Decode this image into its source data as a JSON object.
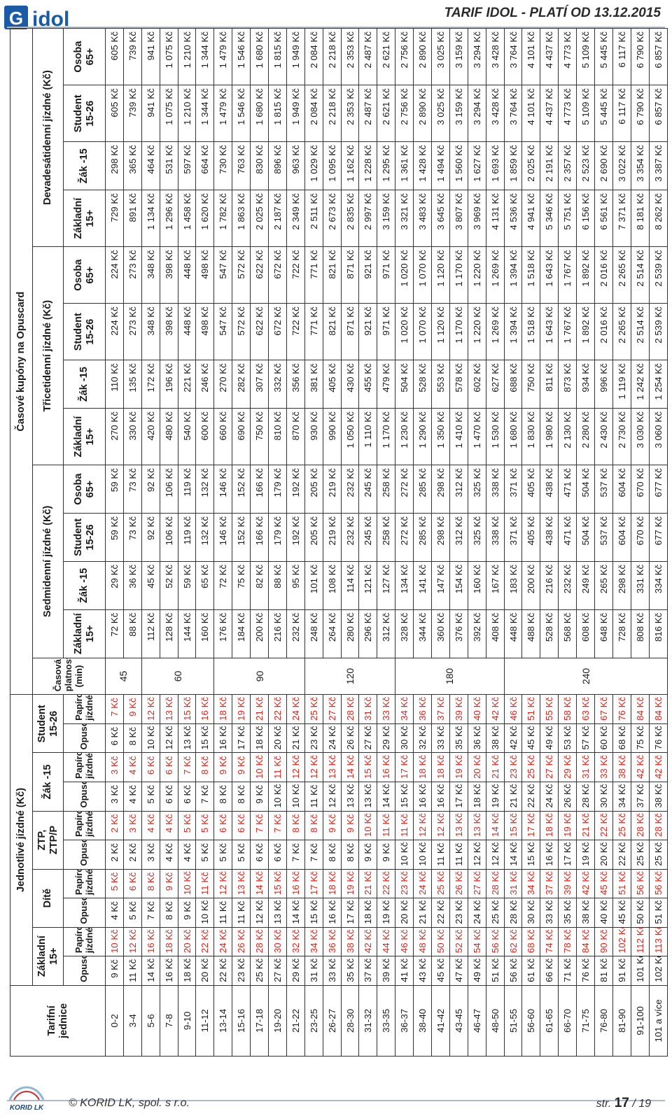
{
  "header": {
    "logo_text": "idol",
    "title": "TARIF IDOL - PLATÍ OD 13.12.2015"
  },
  "table": {
    "h_zones": "Tarifní jednice",
    "h_single": "Jednotlivé jízdné (Kč)",
    "h_coupons": "Časové kupóny na Opuscard",
    "h_validity": "Časová platnost (min)",
    "h_7": "Sedmidenní jízdné (Kč)",
    "h_30": "Třicetidenní jízdné (Kč)",
    "h_90": "Devadesátidenní jízdné (Kč)",
    "single_cats": [
      "Základní 15+",
      "Dítě",
      "ZTP, ZTP/P",
      "Žák -15",
      "Student 15-26"
    ],
    "pay_opus": "Opuscard",
    "pay_paper": "Papírové jízdné",
    "coupon_cats": [
      "Základní 15+",
      "Žák -15",
      "Student 15-26",
      "Osoba 65+"
    ],
    "validity_groups": [
      {
        "rows": 2,
        "label": "45"
      },
      {
        "rows": 4,
        "label": "60"
      },
      {
        "rows": 5,
        "label": "90"
      },
      {
        "rows": 5,
        "label": "120"
      },
      {
        "rows": 6,
        "label": "180"
      },
      {
        "rows": 9,
        "label": "240"
      }
    ],
    "rows": [
      {
        "z": "0-2",
        "s": [
          "9 Kč",
          "10 Kč",
          "4 Kč",
          "5 Kč",
          "2 Kč",
          "2 Kč",
          "3 Kč",
          "3 Kč",
          "6 Kč",
          "7 Kč"
        ],
        "c": [
          "72 Kč",
          "29 Kč",
          "59 Kč",
          "59 Kč",
          "270 Kč",
          "110 Kč",
          "224 Kč",
          "224 Kč",
          "729 Kč",
          "298 Kč",
          "605 Kč",
          "605 Kč"
        ]
      },
      {
        "z": "3-4",
        "s": [
          "11 Kč",
          "12 Kč",
          "5 Kč",
          "6 Kč",
          "2 Kč",
          "3 Kč",
          "4 Kč",
          "4 Kč",
          "8 Kč",
          "9 Kč"
        ],
        "c": [
          "88 Kč",
          "36 Kč",
          "73 Kč",
          "73 Kč",
          "330 Kč",
          "135 Kč",
          "273 Kč",
          "273 Kč",
          "891 Kč",
          "365 Kč",
          "739 Kč",
          "739 Kč"
        ]
      },
      {
        "z": "5-6",
        "s": [
          "14 Kč",
          "16 Kč",
          "7 Kč",
          "8 Kč",
          "3 Kč",
          "4 Kč",
          "5 Kč",
          "6 Kč",
          "10 Kč",
          "12 Kč"
        ],
        "c": [
          "112 Kč",
          "45 Kč",
          "92 Kč",
          "92 Kč",
          "420 Kč",
          "172 Kč",
          "348 Kč",
          "348 Kč",
          "1 134 Kč",
          "464 Kč",
          "941 Kč",
          "941 Kč"
        ]
      },
      {
        "z": "7-8",
        "s": [
          "16 Kč",
          "18 Kč",
          "8 Kč",
          "9 Kč",
          "4 Kč",
          "4 Kč",
          "6 Kč",
          "6 Kč",
          "12 Kč",
          "13 Kč"
        ],
        "c": [
          "128 Kč",
          "52 Kč",
          "106 Kč",
          "106 Kč",
          "480 Kč",
          "196 Kč",
          "398 Kč",
          "398 Kč",
          "1 296 Kč",
          "531 Kč",
          "1 075 Kč",
          "1 075 Kč"
        ]
      },
      {
        "z": "9-10",
        "s": [
          "18 Kč",
          "20 Kč",
          "9 Kč",
          "10 Kč",
          "4 Kč",
          "5 Kč",
          "6 Kč",
          "7 Kč",
          "13 Kč",
          "15 Kč"
        ],
        "c": [
          "144 Kč",
          "59 Kč",
          "119 Kč",
          "119 Kč",
          "540 Kč",
          "221 Kč",
          "448 Kč",
          "448 Kč",
          "1 458 Kč",
          "597 Kč",
          "1 210 Kč",
          "1 210 Kč"
        ]
      },
      {
        "z": "11-12",
        "s": [
          "20 Kč",
          "22 Kč",
          "10 Kč",
          "11 Kč",
          "5 Kč",
          "5 Kč",
          "7 Kč",
          "8 Kč",
          "15 Kč",
          "16 Kč"
        ],
        "c": [
          "160 Kč",
          "65 Kč",
          "132 Kč",
          "132 Kč",
          "600 Kč",
          "246 Kč",
          "498 Kč",
          "498 Kč",
          "1 620 Kč",
          "664 Kč",
          "1 344 Kč",
          "1 344 Kč"
        ]
      },
      {
        "z": "13-14",
        "s": [
          "22 Kč",
          "24 Kč",
          "11 Kč",
          "12 Kč",
          "5 Kč",
          "6 Kč",
          "8 Kč",
          "9 Kč",
          "16 Kč",
          "18 Kč"
        ],
        "c": [
          "176 Kč",
          "72 Kč",
          "146 Kč",
          "146 Kč",
          "660 Kč",
          "270 Kč",
          "547 Kč",
          "547 Kč",
          "1 782 Kč",
          "730 Kč",
          "1 479 Kč",
          "1 479 Kč"
        ]
      },
      {
        "z": "15-16",
        "s": [
          "23 Kč",
          "26 Kč",
          "11 Kč",
          "13 Kč",
          "5 Kč",
          "6 Kč",
          "8 Kč",
          "9 Kč",
          "17 Kč",
          "19 Kč"
        ],
        "c": [
          "184 Kč",
          "75 Kč",
          "152 Kč",
          "152 Kč",
          "690 Kč",
          "282 Kč",
          "572 Kč",
          "572 Kč",
          "1 863 Kč",
          "763 Kč",
          "1 546 Kč",
          "1 546 Kč"
        ]
      },
      {
        "z": "17-18",
        "s": [
          "25 Kč",
          "28 Kč",
          "12 Kč",
          "14 Kč",
          "6 Kč",
          "7 Kč",
          "9 Kč",
          "10 Kč",
          "18 Kč",
          "21 Kč"
        ],
        "c": [
          "200 Kč",
          "82 Kč",
          "166 Kč",
          "166 Kč",
          "750 Kč",
          "307 Kč",
          "622 Kč",
          "622 Kč",
          "2 025 Kč",
          "830 Kč",
          "1 680 Kč",
          "1 680 Kč"
        ]
      },
      {
        "z": "19-20",
        "s": [
          "27 Kč",
          "30 Kč",
          "13 Kč",
          "15 Kč",
          "6 Kč",
          "7 Kč",
          "10 Kč",
          "11 Kč",
          "20 Kč",
          "22 Kč"
        ],
        "c": [
          "216 Kč",
          "88 Kč",
          "179 Kč",
          "179 Kč",
          "810 Kč",
          "332 Kč",
          "672 Kč",
          "672 Kč",
          "2 187 Kč",
          "896 Kč",
          "1 815 Kč",
          "1 815 Kč"
        ]
      },
      {
        "z": "21-22",
        "s": [
          "29 Kč",
          "32 Kč",
          "14 Kč",
          "16 Kč",
          "7 Kč",
          "8 Kč",
          "10 Kč",
          "12 Kč",
          "21 Kč",
          "24 Kč"
        ],
        "c": [
          "232 Kč",
          "95 Kč",
          "192 Kč",
          "192 Kč",
          "870 Kč",
          "356 Kč",
          "722 Kč",
          "722 Kč",
          "2 349 Kč",
          "963 Kč",
          "1 949 Kč",
          "1 949 Kč"
        ]
      },
      {
        "z": "23-25",
        "s": [
          "31 Kč",
          "34 Kč",
          "15 Kč",
          "17 Kč",
          "7 Kč",
          "8 Kč",
          "11 Kč",
          "12 Kč",
          "23 Kč",
          "25 Kč"
        ],
        "c": [
          "248 Kč",
          "101 Kč",
          "205 Kč",
          "205 Kč",
          "930 Kč",
          "381 Kč",
          "771 Kč",
          "771 Kč",
          "2 511 Kč",
          "1 029 Kč",
          "2 084 Kč",
          "2 084 Kč"
        ]
      },
      {
        "z": "26-27",
        "s": [
          "33 Kč",
          "36 Kč",
          "16 Kč",
          "18 Kč",
          "8 Kč",
          "9 Kč",
          "12 Kč",
          "13 Kč",
          "24 Kč",
          "27 Kč"
        ],
        "c": [
          "264 Kč",
          "108 Kč",
          "219 Kč",
          "219 Kč",
          "990 Kč",
          "405 Kč",
          "821 Kč",
          "821 Kč",
          "2 673 Kč",
          "1 095 Kč",
          "2 218 Kč",
          "2 218 Kč"
        ]
      },
      {
        "z": "28-30",
        "s": [
          "35 Kč",
          "38 Kč",
          "17 Kč",
          "19 Kč",
          "8 Kč",
          "9 Kč",
          "13 Kč",
          "14 Kč",
          "26 Kč",
          "28 Kč"
        ],
        "c": [
          "280 Kč",
          "114 Kč",
          "232 Kč",
          "232 Kč",
          "1 050 Kč",
          "430 Kč",
          "871 Kč",
          "871 Kč",
          "2 835 Kč",
          "1 162 Kč",
          "2 353 Kč",
          "2 353 Kč"
        ]
      },
      {
        "z": "31-32",
        "s": [
          "37 Kč",
          "42 Kč",
          "18 Kč",
          "21 Kč",
          "9 Kč",
          "10 Kč",
          "13 Kč",
          "15 Kč",
          "27 Kč",
          "31 Kč"
        ],
        "c": [
          "296 Kč",
          "121 Kč",
          "245 Kč",
          "245 Kč",
          "1 110 Kč",
          "455 Kč",
          "921 Kč",
          "921 Kč",
          "2 997 Kč",
          "1 228 Kč",
          "2 487 Kč",
          "2 487 Kč"
        ]
      },
      {
        "z": "33-35",
        "s": [
          "39 Kč",
          "44 Kč",
          "19 Kč",
          "22 Kč",
          "9 Kč",
          "11 Kč",
          "14 Kč",
          "16 Kč",
          "29 Kč",
          "33 Kč"
        ],
        "c": [
          "312 Kč",
          "127 Kč",
          "258 Kč",
          "258 Kč",
          "1 170 Kč",
          "479 Kč",
          "971 Kč",
          "971 Kč",
          "3 159 Kč",
          "1 295 Kč",
          "2 621 Kč",
          "2 621 Kč"
        ]
      },
      {
        "z": "36-37",
        "s": [
          "41 Kč",
          "46 Kč",
          "20 Kč",
          "23 Kč",
          "10 Kč",
          "11 Kč",
          "15 Kč",
          "17 Kč",
          "30 Kč",
          "34 Kč"
        ],
        "c": [
          "328 Kč",
          "134 Kč",
          "272 Kč",
          "272 Kč",
          "1 230 Kč",
          "504 Kč",
          "1 020 Kč",
          "1 020 Kč",
          "3 321 Kč",
          "1 361 Kč",
          "2 756 Kč",
          "2 756 Kč"
        ]
      },
      {
        "z": "38-40",
        "s": [
          "43 Kč",
          "48 Kč",
          "21 Kč",
          "24 Kč",
          "10 Kč",
          "12 Kč",
          "16 Kč",
          "18 Kč",
          "32 Kč",
          "36 Kč"
        ],
        "c": [
          "344 Kč",
          "141 Kč",
          "285 Kč",
          "285 Kč",
          "1 290 Kč",
          "528 Kč",
          "1 070 Kč",
          "1 070 Kč",
          "3 483 Kč",
          "1 428 Kč",
          "2 890 Kč",
          "2 890 Kč"
        ]
      },
      {
        "z": "41-42",
        "s": [
          "45 Kč",
          "50 Kč",
          "22 Kč",
          "25 Kč",
          "11 Kč",
          "12 Kč",
          "16 Kč",
          "18 Kč",
          "33 Kč",
          "37 Kč"
        ],
        "c": [
          "360 Kč",
          "147 Kč",
          "298 Kč",
          "298 Kč",
          "1 350 Kč",
          "553 Kč",
          "1 120 Kč",
          "1 120 Kč",
          "3 645 Kč",
          "1 494 Kč",
          "3 025 Kč",
          "3 025 Kč"
        ]
      },
      {
        "z": "43-45",
        "s": [
          "47 Kč",
          "52 Kč",
          "23 Kč",
          "26 Kč",
          "11 Kč",
          "13 Kč",
          "17 Kč",
          "19 Kč",
          "35 Kč",
          "39 Kč"
        ],
        "c": [
          "376 Kč",
          "154 Kč",
          "312 Kč",
          "312 Kč",
          "1 410 Kč",
          "578 Kč",
          "1 170 Kč",
          "1 170 Kč",
          "3 807 Kč",
          "1 560 Kč",
          "3 159 Kč",
          "3 159 Kč"
        ]
      },
      {
        "z": "46-47",
        "s": [
          "49 Kč",
          "54 Kč",
          "24 Kč",
          "27 Kč",
          "12 Kč",
          "13 Kč",
          "18 Kč",
          "20 Kč",
          "36 Kč",
          "40 Kč"
        ],
        "c": [
          "392 Kč",
          "160 Kč",
          "325 Kč",
          "325 Kč",
          "1 470 Kč",
          "602 Kč",
          "1 220 Kč",
          "1 220 Kč",
          "3 969 Kč",
          "1 627 Kč",
          "3 294 Kč",
          "3 294 Kč"
        ]
      },
      {
        "z": "48-50",
        "s": [
          "51 Kč",
          "56 Kč",
          "25 Kč",
          "28 Kč",
          "12 Kč",
          "14 Kč",
          "19 Kč",
          "21 Kč",
          "38 Kč",
          "42 Kč"
        ],
        "c": [
          "408 Kč",
          "167 Kč",
          "338 Kč",
          "338 Kč",
          "1 530 Kč",
          "627 Kč",
          "1 269 Kč",
          "1 269 Kč",
          "4 131 Kč",
          "1 693 Kč",
          "3 428 Kč",
          "3 428 Kč"
        ]
      },
      {
        "z": "51-55",
        "s": [
          "56 Kč",
          "62 Kč",
          "28 Kč",
          "31 Kč",
          "14 Kč",
          "15 Kč",
          "21 Kč",
          "23 Kč",
          "42 Kč",
          "46 Kč"
        ],
        "c": [
          "448 Kč",
          "183 Kč",
          "371 Kč",
          "371 Kč",
          "1 680 Kč",
          "688 Kč",
          "1 394 Kč",
          "1 394 Kč",
          "4 536 Kč",
          "1 859 Kč",
          "3 764 Kč",
          "3 764 Kč"
        ]
      },
      {
        "z": "56-60",
        "s": [
          "61 Kč",
          "68 Kč",
          "30 Kč",
          "34 Kč",
          "15 Kč",
          "17 Kč",
          "22 Kč",
          "25 Kč",
          "45 Kč",
          "51 Kč"
        ],
        "c": [
          "488 Kč",
          "200 Kč",
          "405 Kč",
          "405 Kč",
          "1 830 Kč",
          "750 Kč",
          "1 518 Kč",
          "1 518 Kč",
          "4 941 Kč",
          "2 025 Kč",
          "4 101 Kč",
          "4 101 Kč"
        ]
      },
      {
        "z": "61-65",
        "s": [
          "66 Kč",
          "74 Kč",
          "33 Kč",
          "37 Kč",
          "16 Kč",
          "18 Kč",
          "24 Kč",
          "27 Kč",
          "49 Kč",
          "55 Kč"
        ],
        "c": [
          "528 Kč",
          "216 Kč",
          "438 Kč",
          "438 Kč",
          "1 980 Kč",
          "811 Kč",
          "1 643 Kč",
          "1 643 Kč",
          "5 346 Kč",
          "2 191 Kč",
          "4 437 Kč",
          "4 437 Kč"
        ]
      },
      {
        "z": "66-70",
        "s": [
          "71 Kč",
          "78 Kč",
          "35 Kč",
          "39 Kč",
          "17 Kč",
          "19 Kč",
          "26 Kč",
          "29 Kč",
          "53 Kč",
          "58 Kč"
        ],
        "c": [
          "568 Kč",
          "232 Kč",
          "471 Kč",
          "471 Kč",
          "2 130 Kč",
          "873 Kč",
          "1 767 Kč",
          "1 767 Kč",
          "5 751 Kč",
          "2 357 Kč",
          "4 773 Kč",
          "4 773 Kč"
        ]
      },
      {
        "z": "71-75",
        "s": [
          "76 Kč",
          "84 Kč",
          "38 Kč",
          "42 Kč",
          "19 Kč",
          "21 Kč",
          "28 Kč",
          "31 Kč",
          "57 Kč",
          "63 Kč"
        ],
        "c": [
          "608 Kč",
          "249 Kč",
          "504 Kč",
          "504 Kč",
          "2 280 Kč",
          "934 Kč",
          "1 892 Kč",
          "1 892 Kč",
          "6 156 Kč",
          "2 523 Kč",
          "5 109 Kč",
          "5 109 Kč"
        ]
      },
      {
        "z": "76-80",
        "s": [
          "81 Kč",
          "90 Kč",
          "40 Kč",
          "45 Kč",
          "20 Kč",
          "22 Kč",
          "30 Kč",
          "33 Kč",
          "60 Kč",
          "67 Kč"
        ],
        "c": [
          "648 Kč",
          "265 Kč",
          "537 Kč",
          "537 Kč",
          "2 430 Kč",
          "996 Kč",
          "2 016 Kč",
          "2 016 Kč",
          "6 561 Kč",
          "2 690 Kč",
          "5 445 Kč",
          "5 445 Kč"
        ]
      },
      {
        "z": "81-90",
        "s": [
          "91 Kč",
          "102 Kč",
          "45 Kč",
          "51 Kč",
          "22 Kč",
          "25 Kč",
          "34 Kč",
          "38 Kč",
          "68 Kč",
          "76 Kč"
        ],
        "c": [
          "728 Kč",
          "298 Kč",
          "604 Kč",
          "604 Kč",
          "2 730 Kč",
          "1 119 Kč",
          "2 265 Kč",
          "2 265 Kč",
          "7 371 Kč",
          "3 022 Kč",
          "6 117 Kč",
          "6 117 Kč"
        ]
      },
      {
        "z": "91-100",
        "s": [
          "101 Kč",
          "112 Kč",
          "50 Kč",
          "56 Kč",
          "25 Kč",
          "28 Kč",
          "37 Kč",
          "42 Kč",
          "75 Kč",
          "84 Kč"
        ],
        "c": [
          "808 Kč",
          "331 Kč",
          "670 Kč",
          "670 Kč",
          "3 030 Kč",
          "1 242 Kč",
          "2 514 Kč",
          "2 514 Kč",
          "8 181 Kč",
          "3 354 Kč",
          "6 790 Kč",
          "6 790 Kč"
        ]
      },
      {
        "z": "101 a více",
        "s": [
          "102 Kč",
          "113 Kč",
          "51 Kč",
          "56 Kč",
          "25 Kč",
          "28 Kč",
          "38 Kč",
          "42 Kč",
          "76 Kč",
          "84 Kč"
        ],
        "c": [
          "816 Kč",
          "334 Kč",
          "677 Kč",
          "677 Kč",
          "3 060 Kč",
          "1 254 Kč",
          "2 539 Kč",
          "2 539 Kč",
          "8 262 Kč",
          "3 387 Kč",
          "6 857 Kč",
          "6 857 Kč"
        ]
      }
    ]
  },
  "footer": {
    "logo_text": "KORID LK",
    "copyright": "© KORID LK, spol. s r.o.",
    "page_prefix": "str.",
    "page_current": "17",
    "page_total": "/ 19"
  }
}
